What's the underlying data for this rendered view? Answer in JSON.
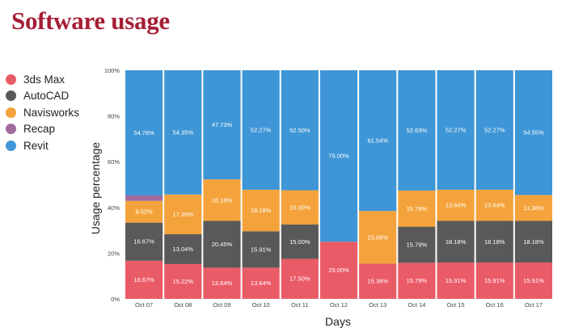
{
  "page_title": "Software usage",
  "colors": {
    "title": "#a51e36",
    "3ds Max": "#ea5b68",
    "AutoCAD": "#595959",
    "Navisworks": "#f4a33c",
    "Recap": "#a06a9c",
    "Revit": "#3e96d6"
  },
  "chart_data": {
    "type": "bar",
    "stacked": true,
    "title": "Software usage",
    "xlabel": "Days",
    "ylabel": "Usage percentage",
    "ylim": [
      0,
      100
    ],
    "yticks": [
      "0%",
      "20%",
      "40%",
      "60%",
      "80%",
      "100%"
    ],
    "categories": [
      "Oct 07",
      "Oct 08",
      "Oct 09",
      "Oct 10",
      "Oct 11",
      "Oct 12",
      "Oct 13",
      "Oct 14",
      "Oct 15",
      "Oct 16",
      "Oct 17"
    ],
    "legend_position": "left",
    "series": [
      {
        "name": "3ds Max",
        "values": [
          16.67,
          15.22,
          13.64,
          13.64,
          17.5,
          25,
          15.38,
          15.79,
          15.91,
          15.91,
          15.91
        ],
        "labels": [
          "16.67%",
          "15.22%",
          "13.64%",
          "13.64%",
          "17.50%",
          "25.00%",
          "15.38%",
          "15.79%",
          "15.91%",
          "15.91%",
          "15.91%"
        ]
      },
      {
        "name": "AutoCAD",
        "values": [
          16.67,
          13.04,
          20.45,
          15.91,
          15,
          0,
          0,
          15.79,
          18.18,
          18.18,
          18.18
        ],
        "labels": [
          "16.67%",
          "13.04%",
          "20.45%",
          "15.91%",
          "15.00%",
          "",
          "",
          "15.79%",
          "18.18%",
          "18.18%",
          "18.18%"
        ]
      },
      {
        "name": "Navisworks",
        "values": [
          9.52,
          17.39,
          18.18,
          18.18,
          15,
          0,
          23.08,
          15.79,
          13.64,
          13.64,
          11.36
        ],
        "labels": [
          "9.52%",
          "17.39%",
          "18.18%",
          "18.18%",
          "15.00%",
          "",
          "23.08%",
          "15.79%",
          "13.64%",
          "13.64%",
          "11.36%"
        ]
      },
      {
        "name": "Recap",
        "values": [
          2.38,
          0,
          0,
          0,
          0,
          0,
          0,
          0,
          0,
          0,
          0
        ],
        "labels": [
          "",
          "",
          "",
          "",
          "",
          "",
          "",
          "",
          "",
          "",
          ""
        ]
      },
      {
        "name": "Revit",
        "values": [
          54.76,
          54.35,
          47.73,
          52.27,
          52.5,
          75,
          61.54,
          52.63,
          52.27,
          52.27,
          54.55
        ],
        "labels": [
          "54.76%",
          "54.35%",
          "47.73%",
          "52.27%",
          "52.50%",
          "75.00%",
          "61.54%",
          "52.63%",
          "52.27%",
          "52.27%",
          "54.55%"
        ]
      }
    ]
  }
}
